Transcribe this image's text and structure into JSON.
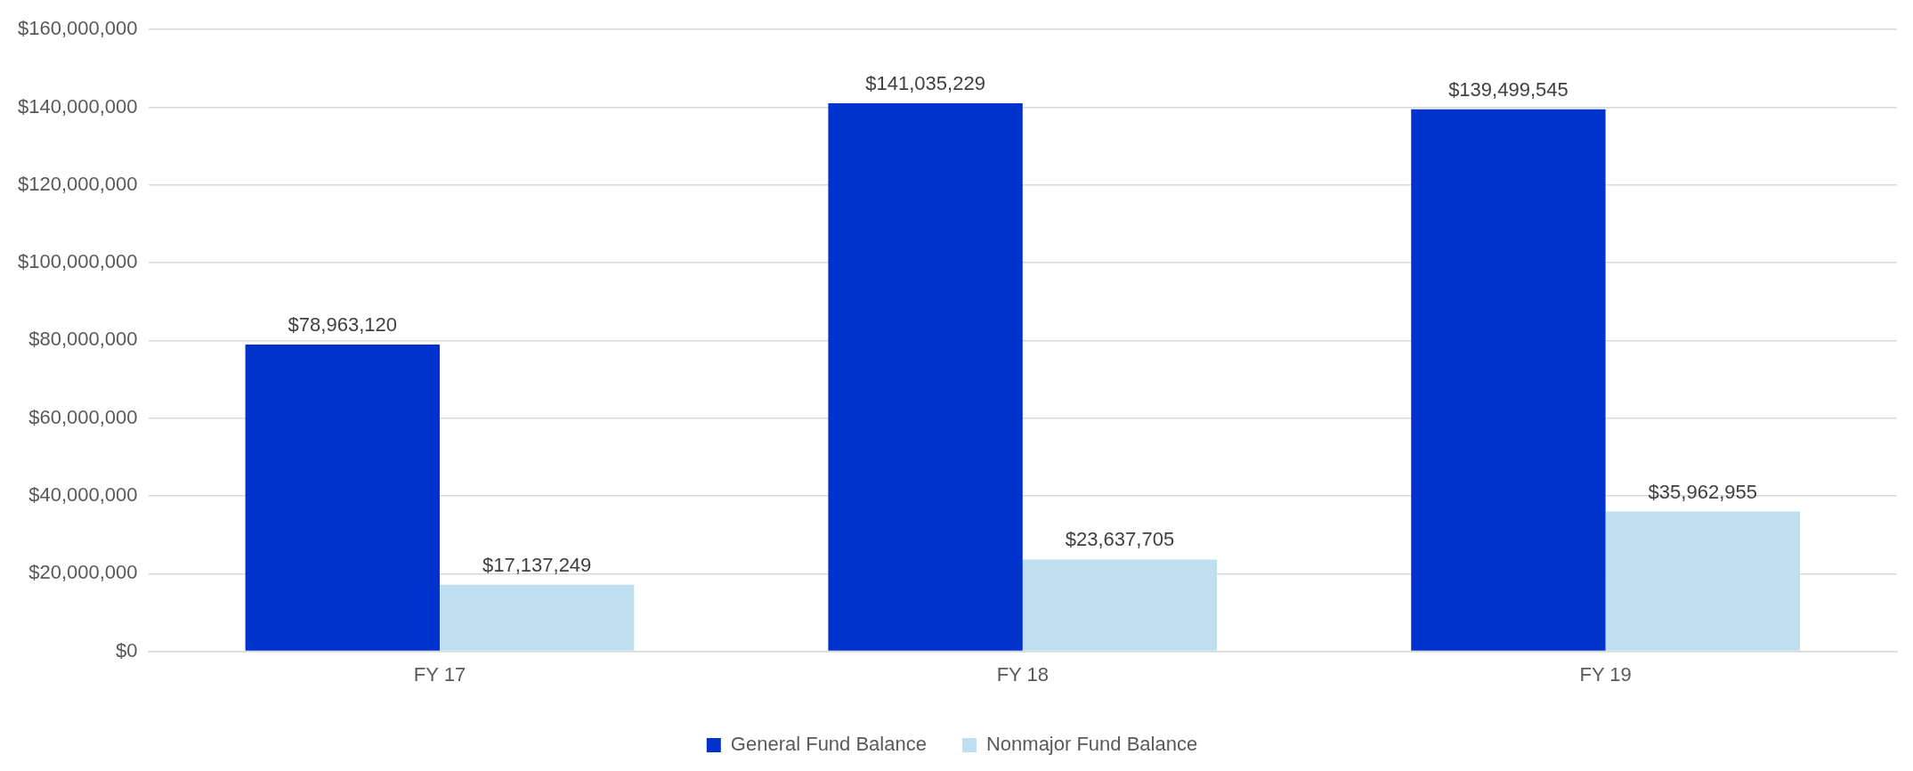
{
  "chart_data": {
    "type": "bar",
    "categories": [
      "FY 17",
      "FY 18",
      "FY 19"
    ],
    "series": [
      {
        "name": "General Fund Balance",
        "color": "#0033cc",
        "values": [
          78963120,
          141035229,
          139499545
        ],
        "value_labels": [
          "$78,963,120",
          "$141,035,229",
          "$139,499,545"
        ]
      },
      {
        "name": "Nonmajor Fund Balance",
        "color": "#bddff0",
        "values": [
          17137249,
          23637705,
          35962955
        ],
        "value_labels": [
          "$17,137,249",
          "$23,637,705",
          "$35,962,955"
        ]
      }
    ],
    "ylim": [
      0,
      160000000
    ],
    "yticks": [
      {
        "value": 0,
        "label": "$0"
      },
      {
        "value": 20000000,
        "label": "$20,000,000"
      },
      {
        "value": 40000000,
        "label": "$40,000,000"
      },
      {
        "value": 60000000,
        "label": "$60,000,000"
      },
      {
        "value": 80000000,
        "label": "$80,000,000"
      },
      {
        "value": 100000000,
        "label": "$100,000,000"
      },
      {
        "value": 120000000,
        "label": "$120,000,000"
      },
      {
        "value": 140000000,
        "label": "$140,000,000"
      },
      {
        "value": 160000000,
        "label": "$160,000,000"
      }
    ],
    "grid": "y",
    "legend": "bottom"
  }
}
